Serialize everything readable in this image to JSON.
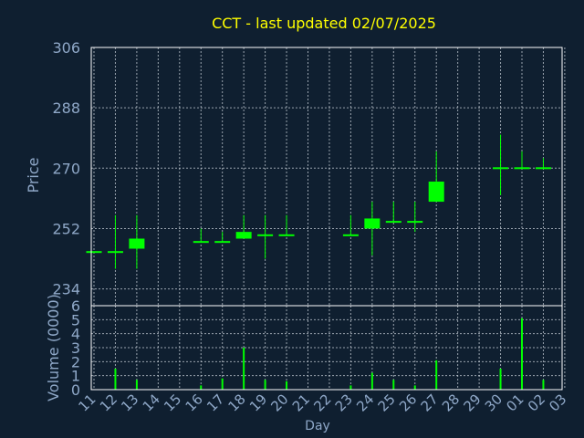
{
  "chart_data": [
    {
      "type": "candlestick",
      "title": "CCT - last updated 02/07/2025",
      "ylabel": "Price",
      "ylim": [
        229,
        306
      ],
      "yticks": [
        234,
        252,
        270,
        288,
        306
      ],
      "grid": true,
      "colors": {
        "candle": "#00ff00",
        "title": "#ffff00",
        "axis_text": "#8fa8c8",
        "background": "#0f1f30"
      },
      "candles": [
        {
          "day": "11",
          "open": 245,
          "high": 245,
          "low": 245,
          "close": 245
        },
        {
          "day": "12",
          "open": 245,
          "high": 256,
          "low": 240,
          "close": 245
        },
        {
          "day": "13",
          "open": 246,
          "high": 256,
          "low": 240,
          "close": 249
        },
        {
          "day": "16",
          "open": 248,
          "high": 252,
          "low": 248,
          "close": 248
        },
        {
          "day": "17",
          "open": 248,
          "high": 251,
          "low": 248,
          "close": 248
        },
        {
          "day": "18",
          "open": 249,
          "high": 256,
          "low": 249,
          "close": 251
        },
        {
          "day": "19",
          "open": 250,
          "high": 256,
          "low": 243,
          "close": 250
        },
        {
          "day": "20",
          "open": 250,
          "high": 256,
          "low": 250,
          "close": 250
        },
        {
          "day": "23",
          "open": 250,
          "high": 256,
          "low": 250,
          "close": 250
        },
        {
          "day": "24",
          "open": 252,
          "high": 260,
          "low": 244,
          "close": 255
        },
        {
          "day": "25",
          "open": 254,
          "high": 260,
          "low": 254,
          "close": 254
        },
        {
          "day": "26",
          "open": 254,
          "high": 260,
          "low": 251,
          "close": 254
        },
        {
          "day": "27",
          "open": 260,
          "high": 275,
          "low": 260,
          "close": 266
        },
        {
          "day": "30",
          "open": 270,
          "high": 280,
          "low": 262,
          "close": 270
        },
        {
          "day": "01",
          "open": 270,
          "high": 275,
          "low": 270,
          "close": 270
        },
        {
          "day": "02",
          "open": 270,
          "high": 273,
          "low": 270,
          "close": 270
        }
      ]
    },
    {
      "type": "bar",
      "ylabel": "Volume (0000)",
      "xlabel": "Day",
      "ylim": [
        0,
        6
      ],
      "yticks": [
        0,
        1,
        2,
        3,
        4,
        5,
        6
      ],
      "grid": true,
      "categories": [
        "11",
        "12",
        "13",
        "14",
        "15",
        "16",
        "17",
        "18",
        "19",
        "20",
        "21",
        "22",
        "23",
        "24",
        "25",
        "26",
        "27",
        "28",
        "29",
        "30",
        "01",
        "02",
        "03"
      ],
      "values": [
        0,
        1.5,
        0.7,
        0,
        0,
        0.3,
        0.8,
        3.0,
        0.7,
        0.6,
        0,
        0,
        0.3,
        1.2,
        0.7,
        0.3,
        2.1,
        0,
        0,
        1.5,
        5.1,
        0.7,
        0
      ],
      "bar_color": "#00ff00"
    }
  ]
}
